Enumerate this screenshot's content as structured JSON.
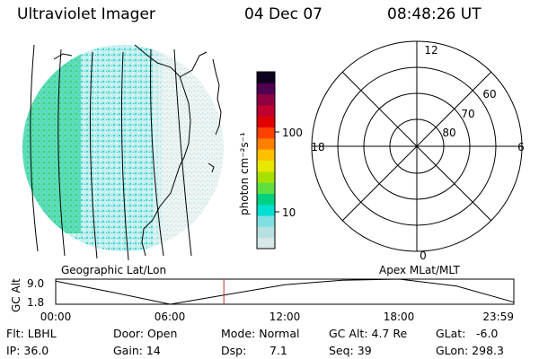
{
  "header": {
    "instrument": "Ultraviolet Imager",
    "date": "04 Dec 07",
    "time": "08:48:26 UT"
  },
  "colorbar": {
    "unit_label": "photon cm⁻²s⁻¹",
    "tick_100": "100",
    "tick_10": "10",
    "colors": [
      "#d8e8e8",
      "#b8e0e0",
      "#80e0e0",
      "#00e0d0",
      "#00d080",
      "#60e040",
      "#a8e000",
      "#e8e800",
      "#ffc000",
      "#ff8000",
      "#ff4000",
      "#e00000",
      "#c00030",
      "#900040",
      "#500050",
      "#100020"
    ]
  },
  "polar_plot": {
    "mlt_12": "12",
    "mlt_18": "18",
    "mlt_6": "6",
    "mlt_0": "0",
    "lat_60": "60",
    "lat_70": "70",
    "lat_80": "80"
  },
  "panel_labels": {
    "left": "Geographic Lat/Lon",
    "right": "Apex MLat/MLT"
  },
  "altitude_chart": {
    "ylabel": "GC Alt",
    "y_max_label": "9.0",
    "y_min_label": "1.8",
    "x_ticks": [
      "00:00",
      "06:00",
      "12:00",
      "18:00",
      "23:59"
    ],
    "marker_time_hours": 8.81,
    "curve": [
      [
        0,
        8.4
      ],
      [
        3,
        5.2
      ],
      [
        6,
        1.8
      ],
      [
        9,
        4.6
      ],
      [
        12,
        7.4
      ],
      [
        15,
        8.7
      ],
      [
        18,
        9.0
      ],
      [
        21,
        7.0
      ],
      [
        24,
        2.4
      ]
    ]
  },
  "info": {
    "flt": "Flt: LBHL",
    "ip": "IP: 36.0",
    "door": "Door: Open",
    "gain": "Gain: 14",
    "mode": "Mode: Normal",
    "dsp_label": "Dsp:",
    "dsp_value": "7.1",
    "gc_alt": "GC Alt: 4.7 Re",
    "seq": "Seq: 39",
    "glat_label": "GLat:",
    "glat_value": "-6.0",
    "glon": "GLon: 298.3"
  }
}
